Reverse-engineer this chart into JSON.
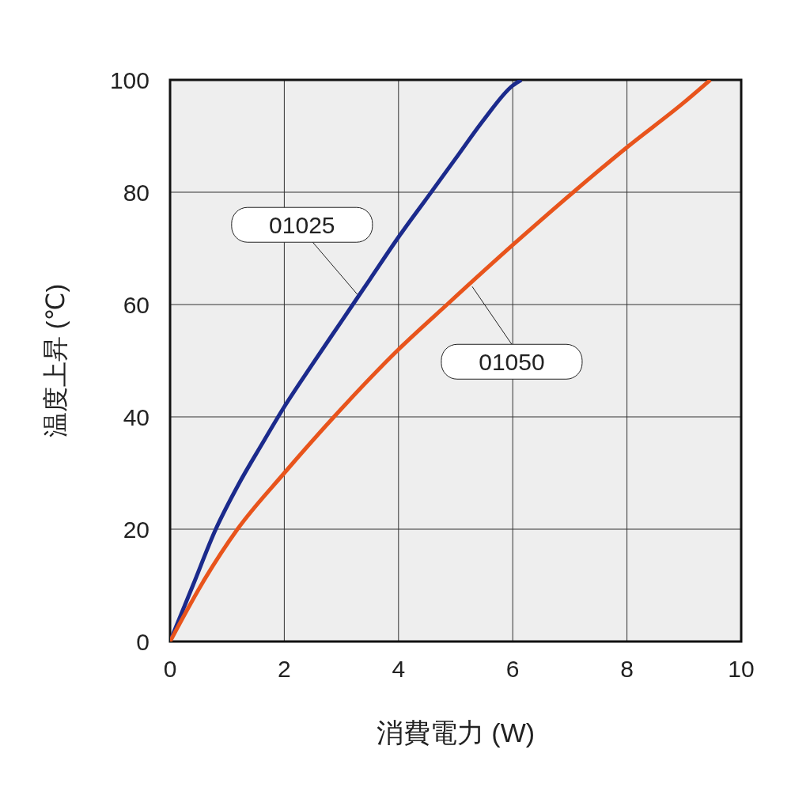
{
  "chart_data": {
    "type": "line",
    "xlabel": "消費電力 (W)",
    "ylabel": "温度上昇 (℃)",
    "series": [
      {
        "color": "#1b2a8c",
        "x": [
          0,
          0.4,
          0.8,
          1.2,
          1.6,
          2,
          2.5,
          3,
          3.5,
          4,
          4.5,
          5,
          5.5,
          6,
          6.15
        ],
        "values": [
          0,
          10,
          20,
          28,
          35,
          41.8,
          49.5,
          57,
          64.5,
          72,
          79,
          86,
          93,
          99,
          100
        ]
      },
      {
        "color": "#e8541c",
        "x": [
          0,
          0.6,
          1.18,
          2,
          2.87,
          4,
          4.85,
          6,
          7.06,
          8,
          9,
          9.46
        ],
        "values": [
          0,
          11,
          20,
          30,
          40,
          52,
          60,
          70.6,
          80,
          88,
          96,
          100
        ]
      }
    ],
    "annotations": [
      {
        "text": "01025",
        "x": 3.28,
        "y": 61.8
      },
      {
        "text": "01050",
        "x": 5.29,
        "y": 63.2
      }
    ],
    "xlim": [
      0,
      10
    ],
    "xticks": [
      0,
      2,
      4,
      6,
      8,
      10
    ],
    "ylim": [
      0,
      100
    ],
    "yticks": [
      0,
      20,
      40,
      60,
      80,
      100
    ],
    "grid": true,
    "line_style": "solid",
    "marker": "none"
  }
}
